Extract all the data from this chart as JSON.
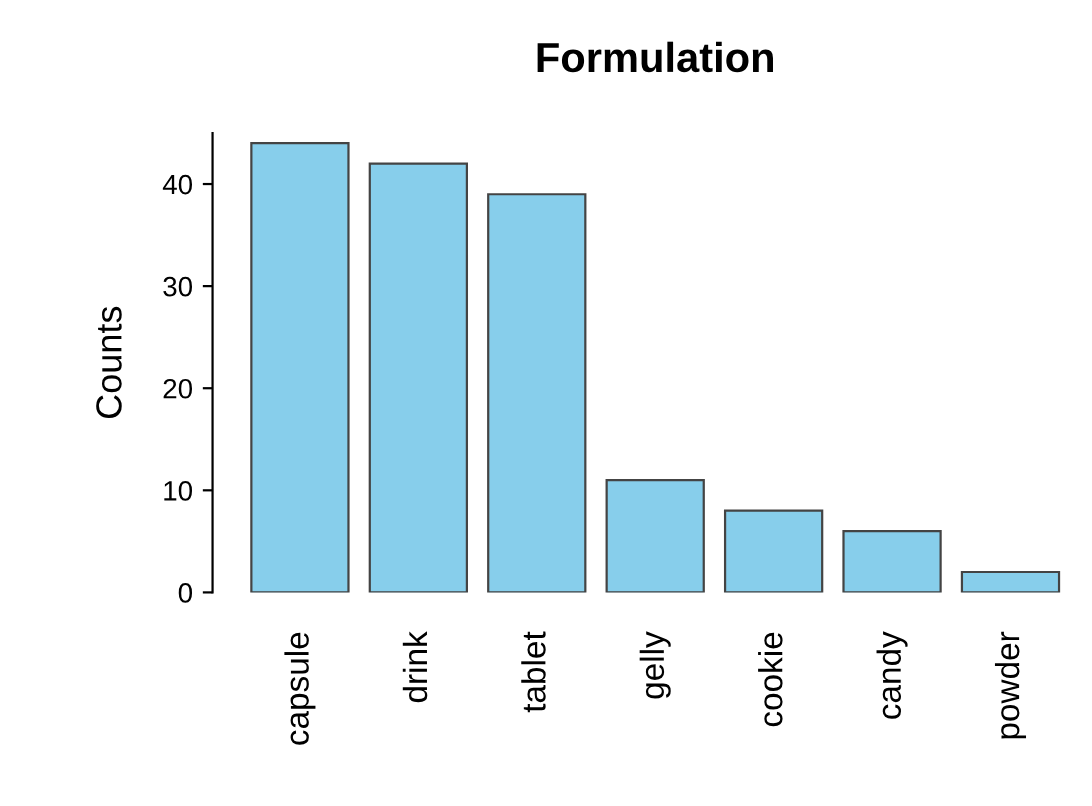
{
  "chart_data": {
    "type": "bar",
    "title": "Formulation",
    "ylabel": "Counts",
    "categories": [
      "capsule",
      "drink",
      "tablet",
      "gelly",
      "cookie",
      "candy",
      "powder"
    ],
    "values": [
      44,
      42,
      39,
      11,
      8,
      6,
      2
    ],
    "color": "#87ceeb",
    "ylim": [
      0,
      45
    ],
    "yticks": [
      0,
      10,
      20,
      30,
      40
    ],
    "grid": false
  }
}
